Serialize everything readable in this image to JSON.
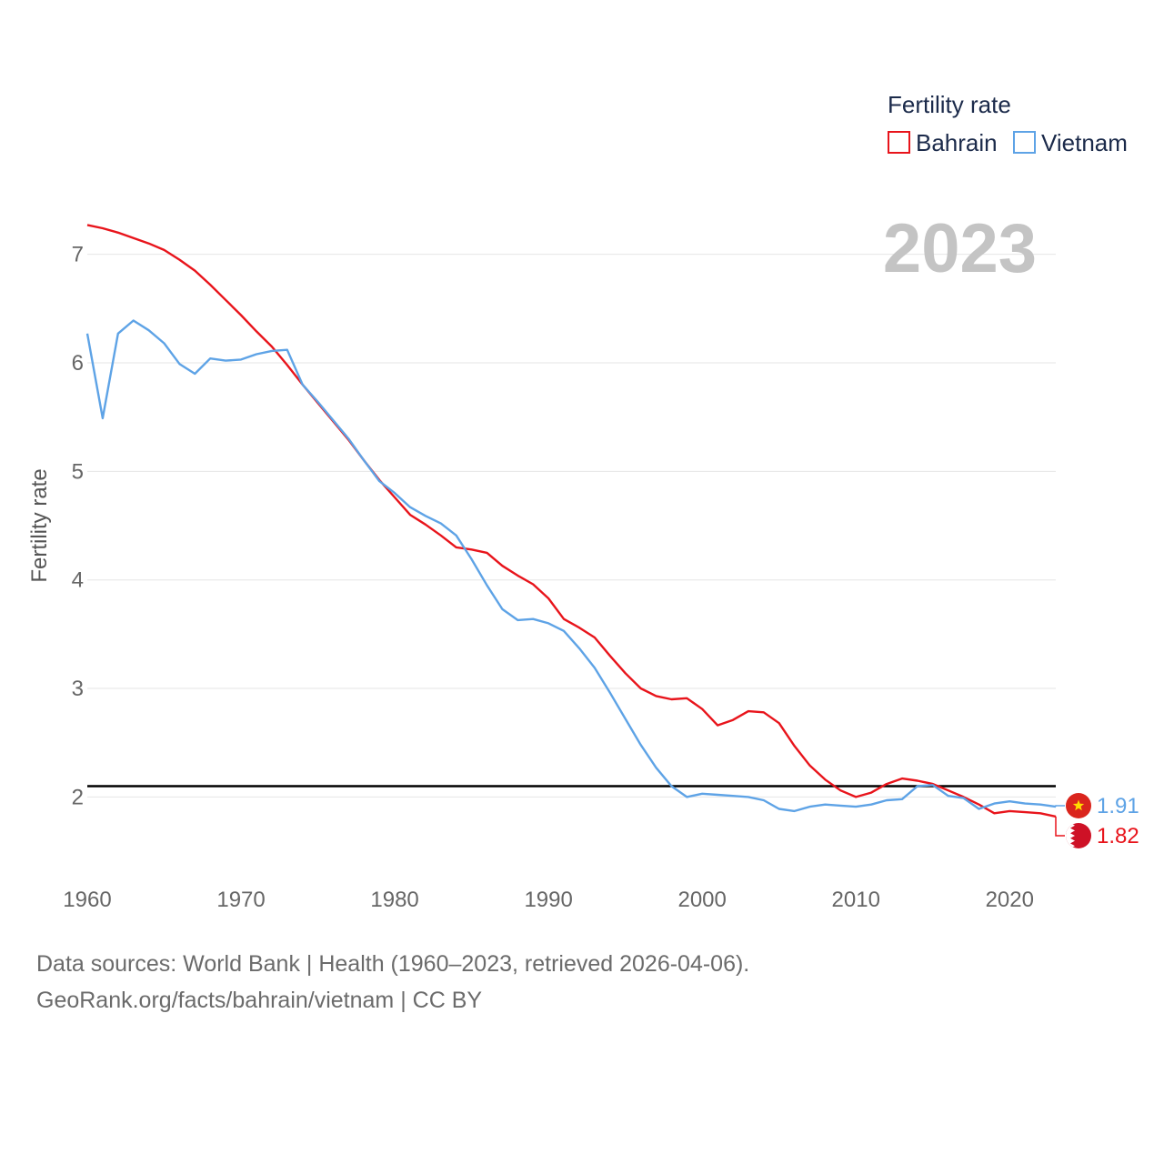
{
  "chart_data": {
    "type": "line",
    "title": "Fertility rate",
    "current_year_label": "2023",
    "ylabel": "Fertility rate",
    "xlabel": "",
    "xlim": [
      1960,
      2023
    ],
    "ylim": [
      1.4,
      7.5
    ],
    "x_ticks": [
      1960,
      1970,
      1980,
      1990,
      2000,
      2010,
      2020
    ],
    "x_tick_labels": [
      "1960",
      "1970",
      "1980",
      "1990",
      "2000",
      "2010",
      "2020"
    ],
    "y_ticks": [
      2,
      3,
      4,
      5,
      6,
      7
    ],
    "y_tick_labels": [
      "2",
      "3",
      "4",
      "5",
      "6",
      "7"
    ],
    "reference_line": 2.1,
    "x": [
      1960,
      1961,
      1962,
      1963,
      1964,
      1965,
      1966,
      1967,
      1968,
      1969,
      1970,
      1971,
      1972,
      1973,
      1974,
      1975,
      1976,
      1977,
      1978,
      1979,
      1980,
      1981,
      1982,
      1983,
      1984,
      1985,
      1986,
      1987,
      1988,
      1989,
      1990,
      1991,
      1992,
      1993,
      1994,
      1995,
      1996,
      1997,
      1998,
      1999,
      2000,
      2001,
      2002,
      2003,
      2004,
      2005,
      2006,
      2007,
      2008,
      2009,
      2010,
      2011,
      2012,
      2013,
      2014,
      2015,
      2016,
      2017,
      2018,
      2019,
      2020,
      2021,
      2022,
      2023
    ],
    "series": [
      {
        "name": "Bahrain",
        "color": "#e8141b",
        "end_label": "1.82",
        "flag": "bahrain-flag",
        "values": [
          7.27,
          7.24,
          7.2,
          7.15,
          7.1,
          7.04,
          6.95,
          6.85,
          6.72,
          6.58,
          6.44,
          6.29,
          6.15,
          5.98,
          5.8,
          5.63,
          5.46,
          5.29,
          5.1,
          4.92,
          4.76,
          4.6,
          4.51,
          4.41,
          4.3,
          4.28,
          4.25,
          4.13,
          4.04,
          3.96,
          3.83,
          3.64,
          3.56,
          3.47,
          3.3,
          3.14,
          3.0,
          2.93,
          2.9,
          2.91,
          2.81,
          2.66,
          2.71,
          2.79,
          2.78,
          2.68,
          2.47,
          2.29,
          2.16,
          2.06,
          2.0,
          2.04,
          2.12,
          2.17,
          2.15,
          2.12,
          2.06,
          2.0,
          1.93,
          1.85,
          1.87,
          1.86,
          1.85,
          1.82
        ]
      },
      {
        "name": "Vietnam",
        "color": "#5ea3e6",
        "end_label": "1.91",
        "flag": "vietnam-flag",
        "values": [
          6.27,
          5.49,
          6.27,
          6.39,
          6.3,
          6.18,
          5.99,
          5.9,
          6.04,
          6.02,
          6.03,
          6.08,
          6.11,
          6.12,
          5.8,
          5.64,
          5.47,
          5.3,
          5.1,
          4.91,
          4.8,
          4.67,
          4.59,
          4.52,
          4.41,
          4.19,
          3.95,
          3.73,
          3.63,
          3.64,
          3.6,
          3.53,
          3.37,
          3.19,
          2.96,
          2.72,
          2.48,
          2.27,
          2.1,
          2.0,
          2.03,
          2.02,
          2.01,
          2.0,
          1.97,
          1.89,
          1.87,
          1.91,
          1.93,
          1.92,
          1.91,
          1.93,
          1.97,
          1.98,
          2.1,
          2.11,
          2.01,
          1.99,
          1.89,
          1.94,
          1.96,
          1.94,
          1.93,
          1.91
        ]
      }
    ]
  },
  "footer": {
    "line1": "Data sources: World Bank | Health (1960–2023, retrieved 2026-04-06).",
    "line2": "GeoRank.org/facts/bahrain/vietnam | CC BY"
  }
}
